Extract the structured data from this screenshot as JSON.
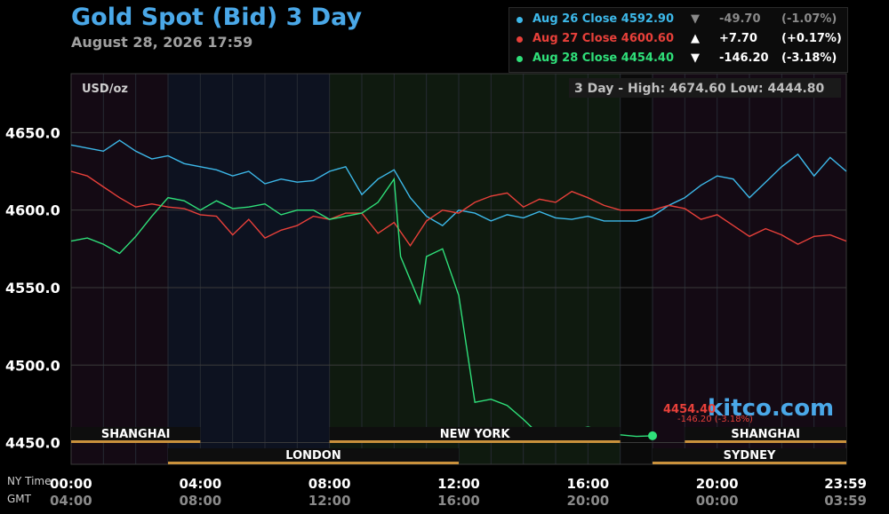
{
  "header": {
    "title": "Gold Spot (Bid) 3 Day",
    "subtitle": "August 28, 2026 17:59"
  },
  "legend": [
    {
      "label": "Aug 26 Close 4592.90",
      "arrow": "▼",
      "change": "-49.70",
      "pct": "(-1.07%)",
      "color": "#3db9ea",
      "arrow_color": "#8a8a8a"
    },
    {
      "label": "Aug 27 Close 4600.60",
      "arrow": "▲",
      "change": "+7.70",
      "pct": "(+0.17%)",
      "color": "#e8403a",
      "arrow_color": "#ffffff"
    },
    {
      "label": "Aug 28 Close 4454.40",
      "arrow": "▼",
      "change": "-146.20",
      "pct": "(-3.18%)",
      "color": "#2fe07a",
      "arrow_color": "#ffffff"
    }
  ],
  "plot": {
    "unit": "USD/oz",
    "range_text": "3 Day - High: 4674.60  Low: 4444.80",
    "watermark": "kitco.com",
    "last_price": "4454.40",
    "last_change": "-146.20 (-3.18%)",
    "last_color": "#e8403a",
    "watermark_color": "#4aa8e8"
  },
  "axis_row_labels": {
    "ny": "NY Time",
    "gmt": "GMT"
  },
  "chart_data": {
    "type": "line",
    "title": "Gold Spot (Bid) 3 Day",
    "ylabel": "USD/oz",
    "ylim": [
      4436,
      4688
    ],
    "xlim": [
      0,
      24
    ],
    "yticks": [
      4650.0,
      4600.0,
      4550.0,
      4500.0,
      4450.0
    ],
    "ytick_labels": [
      "4650.0",
      "4600.0",
      "4550.0",
      "4500.0",
      "4450.0"
    ],
    "xticks": [
      0,
      4,
      8,
      12,
      16,
      20,
      24
    ],
    "xtick_labels_ny": [
      "00:00",
      "04:00",
      "08:00",
      "12:00",
      "16:00",
      "20:00",
      "23:59"
    ],
    "xtick_labels_gmt": [
      "04:00",
      "08:00",
      "12:00",
      "16:00",
      "20:00",
      "00:00",
      "03:59"
    ],
    "grid": true,
    "sessions": [
      {
        "name": "SHANGHAI",
        "start": 0,
        "end": 4.0,
        "row": 1
      },
      {
        "name": "NEW YORK",
        "start": 8.0,
        "end": 17.0,
        "row": 1
      },
      {
        "name": "SHANGHAI",
        "start": 19.0,
        "end": 24,
        "row": 1
      },
      {
        "name": "LONDON",
        "start": 3.0,
        "end": 12.0,
        "row": 2
      },
      {
        "name": "SYDNEY",
        "start": 18.0,
        "end": 24,
        "row": 2
      }
    ],
    "series": [
      {
        "name": "Aug 26",
        "color": "#3db9ea",
        "x": [
          0,
          0.5,
          1,
          1.5,
          2,
          2.5,
          3,
          3.5,
          4,
          4.5,
          5,
          5.5,
          6,
          6.5,
          7,
          7.5,
          8,
          8.5,
          9,
          9.5,
          10,
          10.5,
          11,
          11.5,
          12,
          12.5,
          13,
          13.5,
          14,
          14.5,
          15,
          15.5,
          16,
          16.5,
          17,
          17.5,
          18,
          18.5,
          19,
          19.5,
          20,
          20.5,
          21,
          21.5,
          22,
          22.5,
          23,
          23.5,
          24
        ],
        "y": [
          4642,
          4640,
          4638,
          4645,
          4638,
          4633,
          4635,
          4630,
          4628,
          4626,
          4622,
          4625,
          4617,
          4620,
          4618,
          4619,
          4625,
          4628,
          4610,
          4620,
          4626,
          4608,
          4596,
          4590,
          4600,
          4598,
          4593,
          4597,
          4595,
          4599,
          4595,
          4594,
          4596,
          4593,
          4593,
          4593,
          4596,
          4603,
          4608,
          4616,
          4622,
          4620,
          4608,
          4618,
          4628,
          4636,
          4622,
          4634,
          4625
        ]
      },
      {
        "name": "Aug 27",
        "color": "#e8403a",
        "x": [
          0,
          0.5,
          1,
          1.5,
          2,
          2.5,
          3,
          3.5,
          4,
          4.5,
          5,
          5.5,
          6,
          6.5,
          7,
          7.5,
          8,
          8.5,
          9,
          9.5,
          10,
          10.5,
          11,
          11.5,
          12,
          12.5,
          13,
          13.5,
          14,
          14.5,
          15,
          15.5,
          16,
          16.5,
          17,
          17.5,
          18,
          18.5,
          19,
          19.5,
          20,
          20.5,
          21,
          21.5,
          22,
          22.5,
          23,
          23.5,
          24
        ],
        "y": [
          4625,
          4622,
          4615,
          4608,
          4602,
          4604,
          4602,
          4601,
          4597,
          4596,
          4584,
          4594,
          4582,
          4587,
          4590,
          4596,
          4594,
          4598,
          4598,
          4585,
          4592,
          4577,
          4593,
          4600,
          4598,
          4605,
          4609,
          4611,
          4602,
          4607,
          4605,
          4612,
          4608,
          4603,
          4600,
          4600,
          4600,
          4603,
          4601,
          4594,
          4597,
          4590,
          4583,
          4588,
          4584,
          4578,
          4583,
          4584,
          4580
        ]
      },
      {
        "name": "Aug 28",
        "color": "#2fe07a",
        "x": [
          0,
          0.5,
          1,
          1.5,
          2,
          2.5,
          3,
          3.5,
          4,
          4.5,
          5,
          5.5,
          6,
          6.5,
          7,
          7.5,
          8,
          8.5,
          9,
          9.5,
          10,
          10.2,
          10.5,
          10.8,
          11,
          11.5,
          12,
          12.5,
          13,
          13.5,
          14,
          14.5,
          15,
          15.5,
          16,
          16.5,
          17,
          17.5,
          18
        ],
        "y": [
          4580,
          4582,
          4578,
          4572,
          4583,
          4596,
          4608,
          4606,
          4600,
          4606,
          4601,
          4602,
          4604,
          4597,
          4600,
          4600,
          4594,
          4596,
          4598,
          4605,
          4620,
          4570,
          4555,
          4540,
          4570,
          4575,
          4545,
          4476,
          4478,
          4474,
          4465,
          4455,
          4452,
          4458,
          4460,
          4458,
          4455,
          4454,
          4454.4
        ]
      }
    ]
  }
}
